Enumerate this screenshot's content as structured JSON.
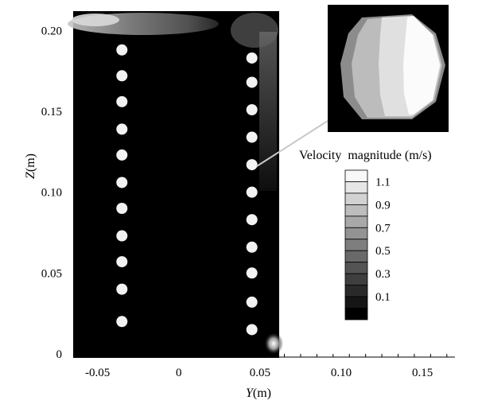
{
  "chart_data": {
    "type": "heatmap",
    "title": "",
    "xlabel_italic": "Y",
    "xlabel_unit": "(m)",
    "ylabel_italic": "Z",
    "ylabel_unit": "(m)",
    "xlim": [
      -0.065,
      0.17
    ],
    "ylim": [
      -0.002,
      0.212
    ],
    "domain": {
      "y_range": [
        -0.065,
        0.065
      ],
      "z_range": [
        0.0,
        0.212
      ]
    },
    "x_ticks": [
      {
        "value": -0.05,
        "label": "-0.05"
      },
      {
        "value": 0,
        "label": "0"
      },
      {
        "value": 0.05,
        "label": "0.05"
      },
      {
        "value": 0.1,
        "label": "0.10"
      },
      {
        "value": 0.15,
        "label": "0.15"
      }
    ],
    "y_ticks": [
      {
        "value": 0,
        "label": "0"
      },
      {
        "value": 0.05,
        "label": "0.05"
      },
      {
        "value": 0.1,
        "label": "0.10"
      },
      {
        "value": 0.15,
        "label": "0.15"
      },
      {
        "value": 0.2,
        "label": "0.20"
      }
    ],
    "particles_left": {
      "y": -0.035,
      "z": [
        0.02,
        0.04,
        0.057,
        0.073,
        0.09,
        0.106,
        0.123,
        0.139,
        0.156,
        0.172,
        0.188
      ]
    },
    "particles_right": {
      "y": 0.045,
      "z": [
        0.015,
        0.032,
        0.05,
        0.066,
        0.083,
        0.1,
        0.117,
        0.134,
        0.151,
        0.168,
        0.183
      ]
    },
    "inset": {
      "target": {
        "y": 0.045,
        "z": 0.117
      }
    },
    "legend": {
      "title": "Velocity  magnitude (m/s)",
      "labels": [
        "1.1",
        "0.9",
        "0.7",
        "0.5",
        "0.3",
        "0.1"
      ],
      "colors": [
        "#f8f8f8",
        "#e6e6e6",
        "#d2d2d2",
        "#bdbdbd",
        "#a8a8a8",
        "#939393",
        "#7e7e7e",
        "#696969",
        "#545454",
        "#3f3f3f",
        "#2a2a2a",
        "#151515",
        "#000000"
      ]
    }
  }
}
